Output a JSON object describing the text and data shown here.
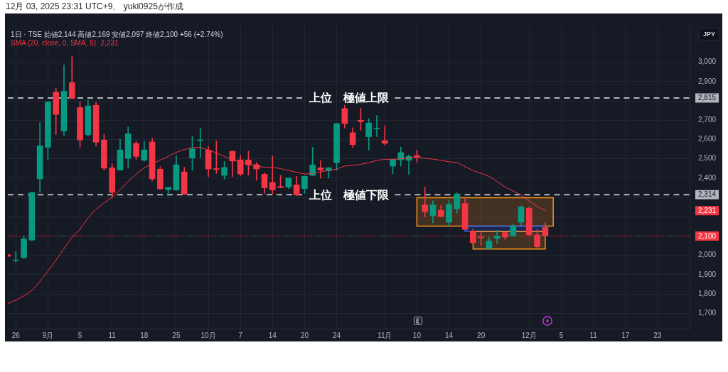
{
  "chart_data": {
    "type": "candlestick",
    "title": "12月 03, 2025 23:31 UTC+9、 yuki0925が作成",
    "subtitle": "1日 · TSE 始値2,144 高値2,169 安値2,097 終値2,100 +56 (+2.74%)",
    "ylabel": "JPY",
    "categories": [
      null,
      "26",
      null,
      null,
      null,
      "9月",
      null,
      null,
      null,
      "5",
      null,
      null,
      null,
      "11",
      null,
      null,
      null,
      "18",
      null,
      null,
      null,
      "25",
      null,
      null,
      null,
      "10月",
      null,
      null,
      null,
      "7",
      null,
      null,
      null,
      "14",
      null,
      null,
      null,
      "20",
      null,
      null,
      null,
      "24",
      null,
      null,
      null,
      null,
      null,
      "11月",
      null,
      null,
      null,
      "10",
      null,
      null,
      null,
      "14",
      null,
      null,
      null,
      "20",
      null,
      null,
      null,
      null,
      null,
      "12月",
      null,
      null,
      null,
      "5",
      null,
      null,
      null,
      "11",
      null,
      null,
      null,
      "17",
      null,
      null,
      null,
      "23",
      null,
      null,
      null,
      null
    ],
    "ohlc": [
      [
        2003,
        2005,
        1993,
        1995
      ],
      [
        1973,
        2020,
        1962,
        1976
      ],
      [
        1988,
        2100,
        1982,
        2085
      ],
      [
        2079,
        2328,
        2075,
        2324
      ],
      [
        2396,
        2688,
        2326,
        2567
      ],
      [
        2559,
        2796,
        2497,
        2794
      ],
      [
        2845,
        2865,
        2626,
        2730
      ],
      [
        2644,
        2985,
        2620,
        2849
      ],
      [
        2894,
        3030,
        2810,
        2812
      ],
      [
        2765,
        2794,
        2561,
        2597
      ],
      [
        2624,
        2804,
        2618,
        2773
      ],
      [
        2777,
        2791,
        2566,
        2586
      ],
      [
        2597,
        2626,
        2441,
        2451
      ],
      [
        2453,
        2473,
        2300,
        2326
      ],
      [
        2442,
        2601,
        2440,
        2546
      ],
      [
        2502,
        2665,
        2451,
        2629
      ],
      [
        2580,
        2591,
        2497,
        2512
      ],
      [
        2492,
        2591,
        2488,
        2546
      ],
      [
        2587,
        2606,
        2385,
        2396
      ],
      [
        2446,
        2459,
        2342,
        2344
      ],
      [
        2340,
        2353,
        2308,
        2352
      ],
      [
        2338,
        2515,
        2336,
        2469
      ],
      [
        2432,
        2456,
        2315,
        2317
      ],
      [
        2504,
        2615,
        2439,
        2551
      ],
      [
        2594,
        2659,
        2506,
        2598
      ],
      [
        2545,
        2565,
        2408,
        2447
      ],
      [
        2449,
        2592,
        2424,
        2445
      ],
      [
        2414,
        2486,
        2394,
        2455
      ],
      [
        2539,
        2540,
        2408,
        2488
      ],
      [
        2494,
        2518,
        2412,
        2421
      ],
      [
        2494,
        2539,
        2415,
        2468
      ],
      [
        2470,
        2481,
        2388,
        2447
      ],
      [
        2420,
        2427,
        2320,
        2350
      ],
      [
        2377,
        2515,
        2318,
        2339
      ],
      [
        2356,
        2414,
        2349,
        2351
      ],
      [
        2353,
        2402,
        2345,
        2400
      ],
      [
        2365,
        2409,
        2310,
        2312
      ],
      [
        2345,
        2411,
        2321,
        2409
      ],
      [
        2414,
        2559,
        2412,
        2468
      ],
      [
        2453,
        2491,
        2400,
        2441
      ],
      [
        2438,
        2455,
        2400,
        2453
      ],
      [
        2479,
        2684,
        2439,
        2682
      ],
      [
        2760,
        2777,
        2659,
        2682
      ],
      [
        2635,
        2661,
        2559,
        2573
      ],
      [
        2700,
        2761,
        2647,
        2692
      ],
      [
        2614,
        2708,
        2545,
        2685
      ],
      [
        2654,
        2724,
        2615,
        2657
      ],
      [
        2594,
        2671,
        2571,
        2580
      ],
      [
        2462,
        2499,
        2421,
        2497
      ],
      [
        2494,
        2561,
        2462,
        2532
      ],
      [
        2492,
        2521,
        2418,
        2512
      ],
      [
        2517,
        2544,
        2481,
        2508
      ],
      [
        2261,
        2353,
        2198,
        2226
      ],
      [
        2206,
        2282,
        2167,
        2261
      ],
      [
        2233,
        2259,
        2198,
        2200
      ],
      [
        2171,
        2285,
        2153,
        2265
      ],
      [
        2241,
        2324,
        2218,
        2318
      ],
      [
        2268,
        2294,
        2132,
        2134
      ],
      [
        2126,
        2135,
        2063,
        2065
      ],
      [
        2094,
        2120,
        2050,
        2091
      ],
      [
        2034,
        2094,
        2034,
        2074
      ],
      [
        2088,
        2130,
        2061,
        2100
      ],
      [
        2118,
        2120,
        2082,
        2094
      ],
      [
        2100,
        2161,
        2098,
        2153
      ],
      [
        2171,
        2257,
        2153,
        2251
      ],
      [
        2244,
        2251,
        2104,
        2106
      ],
      [
        2106,
        2135,
        2040,
        2044
      ],
      [
        2144,
        2169,
        2097,
        2100
      ],
      null,
      null,
      null,
      null,
      null,
      null,
      null,
      null,
      null,
      null,
      null,
      null,
      null,
      null,
      null,
      null,
      null,
      null
    ],
    "colors": [
      "#f23645",
      "#089981",
      "#089981",
      "#089981",
      "#089981",
      "#089981",
      "#f23645",
      "#089981",
      "#f23645",
      "#f23645",
      "#089981",
      "#f23645",
      "#f23645",
      "#f23645",
      "#089981",
      "#089981",
      "#f23645",
      "#089981",
      "#f23645",
      "#f23645",
      "#089981",
      "#089981",
      "#f23645",
      "#089981",
      "#089981",
      "#f23645",
      "#f23645",
      "#089981",
      "#f23645",
      "#f23645",
      "#f23645",
      "#f23645",
      "#f23645",
      "#f23645",
      "#f23645",
      "#089981",
      "#f23645",
      "#089981",
      "#089981",
      "#f23645",
      "#089981",
      "#089981",
      "#f23645",
      "#f23645",
      "#f23645",
      "#089981",
      "#089981",
      "#f23645",
      "#089981",
      "#089981",
      "#089981",
      "#f23645",
      "#f23645",
      "#089981",
      "#f23645",
      "#089981",
      "#089981",
      "#f23645",
      "#f23645",
      "#f23645",
      "#089981",
      "#089981",
      "#f23645",
      "#089981",
      "#089981",
      "#f23645",
      "#f23645",
      "#f23645",
      null,
      null,
      null,
      null,
      null,
      null,
      null,
      null,
      null,
      null,
      null,
      null,
      null,
      null,
      null,
      null,
      null,
      null
    ],
    "series": [
      {
        "name": "SMA (20, close, 0, SMA, 5)",
        "type": "line",
        "color": "#f23645",
        "values": [
          1750,
          1768,
          1790,
          1818,
          1865,
          1918,
          1974,
          2035,
          2094,
          2135,
          2194,
          2239,
          2272,
          2300,
          2340,
          2382,
          2420,
          2453,
          2474,
          2493,
          2512,
          2533,
          2548,
          2557,
          2559,
          2545,
          2530,
          2512,
          2494,
          2483,
          2473,
          2462,
          2456,
          2456,
          2449,
          2439,
          2430,
          2421,
          2424,
          2432,
          2439,
          2447,
          2462,
          2465,
          2471,
          2480,
          2491,
          2497,
          2497,
          2500,
          2504,
          2508,
          2502,
          2498,
          2492,
          2484,
          2481,
          2459,
          2439,
          2424,
          2409,
          2382,
          2353,
          2333,
          2312,
          2282,
          2253,
          2231,
          null,
          null,
          null,
          null,
          null,
          null,
          null,
          null,
          null,
          null,
          null,
          null,
          null,
          null,
          null,
          null,
          null,
          null
        ]
      }
    ],
    "ylim": [
      1620,
      3186
    ],
    "yticks": [
      {
        "value": 1700,
        "label": "1,700"
      },
      {
        "value": 1800,
        "label": "1,800"
      },
      {
        "value": 1900,
        "label": "1,900"
      },
      {
        "value": 2000,
        "label": "2,000"
      },
      {
        "value": 2100,
        "label": null
      },
      {
        "value": 2200,
        "label": null
      },
      {
        "value": 2300,
        "label": null
      },
      {
        "value": 2400,
        "label": "2,400"
      },
      {
        "value": 2500,
        "label": "2,500"
      },
      {
        "value": 2600,
        "label": "2,600"
      },
      {
        "value": 2700,
        "label": "2,700"
      },
      {
        "value": 2800,
        "label": null
      },
      {
        "value": 2900,
        "label": "2,900"
      },
      {
        "value": 3000,
        "label": "3,000"
      }
    ],
    "grid": true,
    "legend": "top left",
    "ref_lines": [
      {
        "axis": "y",
        "value": 2815,
        "label": "上位　極値上限",
        "color": "#b2b5be",
        "line_style": "dashed"
      },
      {
        "axis": "y",
        "value": 2314,
        "label": "上位　極値下限",
        "color": "#b2b5be",
        "line_style": "dashed"
      },
      {
        "axis": "y",
        "value": 2100,
        "color": "#f23645",
        "line_style": "dotted"
      }
    ],
    "bands": [
      {
        "axis": "y",
        "from": 2151,
        "to": 2298,
        "color": "#f7931a"
      },
      {
        "axis": "y",
        "from": 2124,
        "to": 2151,
        "color": "#2962ff"
      },
      {
        "axis": "y",
        "from": 2033,
        "to": 2124,
        "color": "#f7931a"
      }
    ],
    "annotations": [
      "2,815",
      "2,314",
      "2,100",
      "2,231",
      "2,231"
    ]
  }
}
